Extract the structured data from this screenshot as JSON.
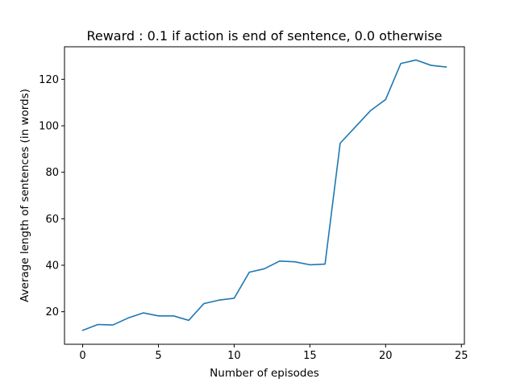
{
  "chart_data": {
    "type": "line",
    "title": "Reward : 0.1 if action is end of sentence, 0.0 otherwise",
    "xlabel": "Number of episodes",
    "ylabel": "Average length of sentences (in words)",
    "xlim": [
      -1.2,
      25.2
    ],
    "ylim": [
      6.0,
      134.0
    ],
    "xticks": [
      0,
      5,
      10,
      15,
      20,
      25
    ],
    "yticks": [
      20,
      40,
      60,
      80,
      100,
      120
    ],
    "grid": false,
    "legend": "none",
    "colors": {
      "line": "#1f77b4",
      "axes": "#000000",
      "background": "#ffffff"
    },
    "series": [
      {
        "x": [
          0,
          1,
          2,
          3,
          4,
          5,
          6,
          7,
          8,
          9,
          10,
          11,
          12,
          13,
          14,
          15,
          16,
          17,
          18,
          19,
          20,
          21,
          22,
          23,
          24
        ],
        "values": [
          12.0,
          14.5,
          14.3,
          17.3,
          19.5,
          18.2,
          18.2,
          16.3,
          23.5,
          25.0,
          25.8,
          37.0,
          38.5,
          41.8,
          41.5,
          40.2,
          40.5,
          92.5,
          99.5,
          106.5,
          111.3,
          126.8,
          128.3,
          126.0,
          125.3
        ]
      }
    ]
  }
}
